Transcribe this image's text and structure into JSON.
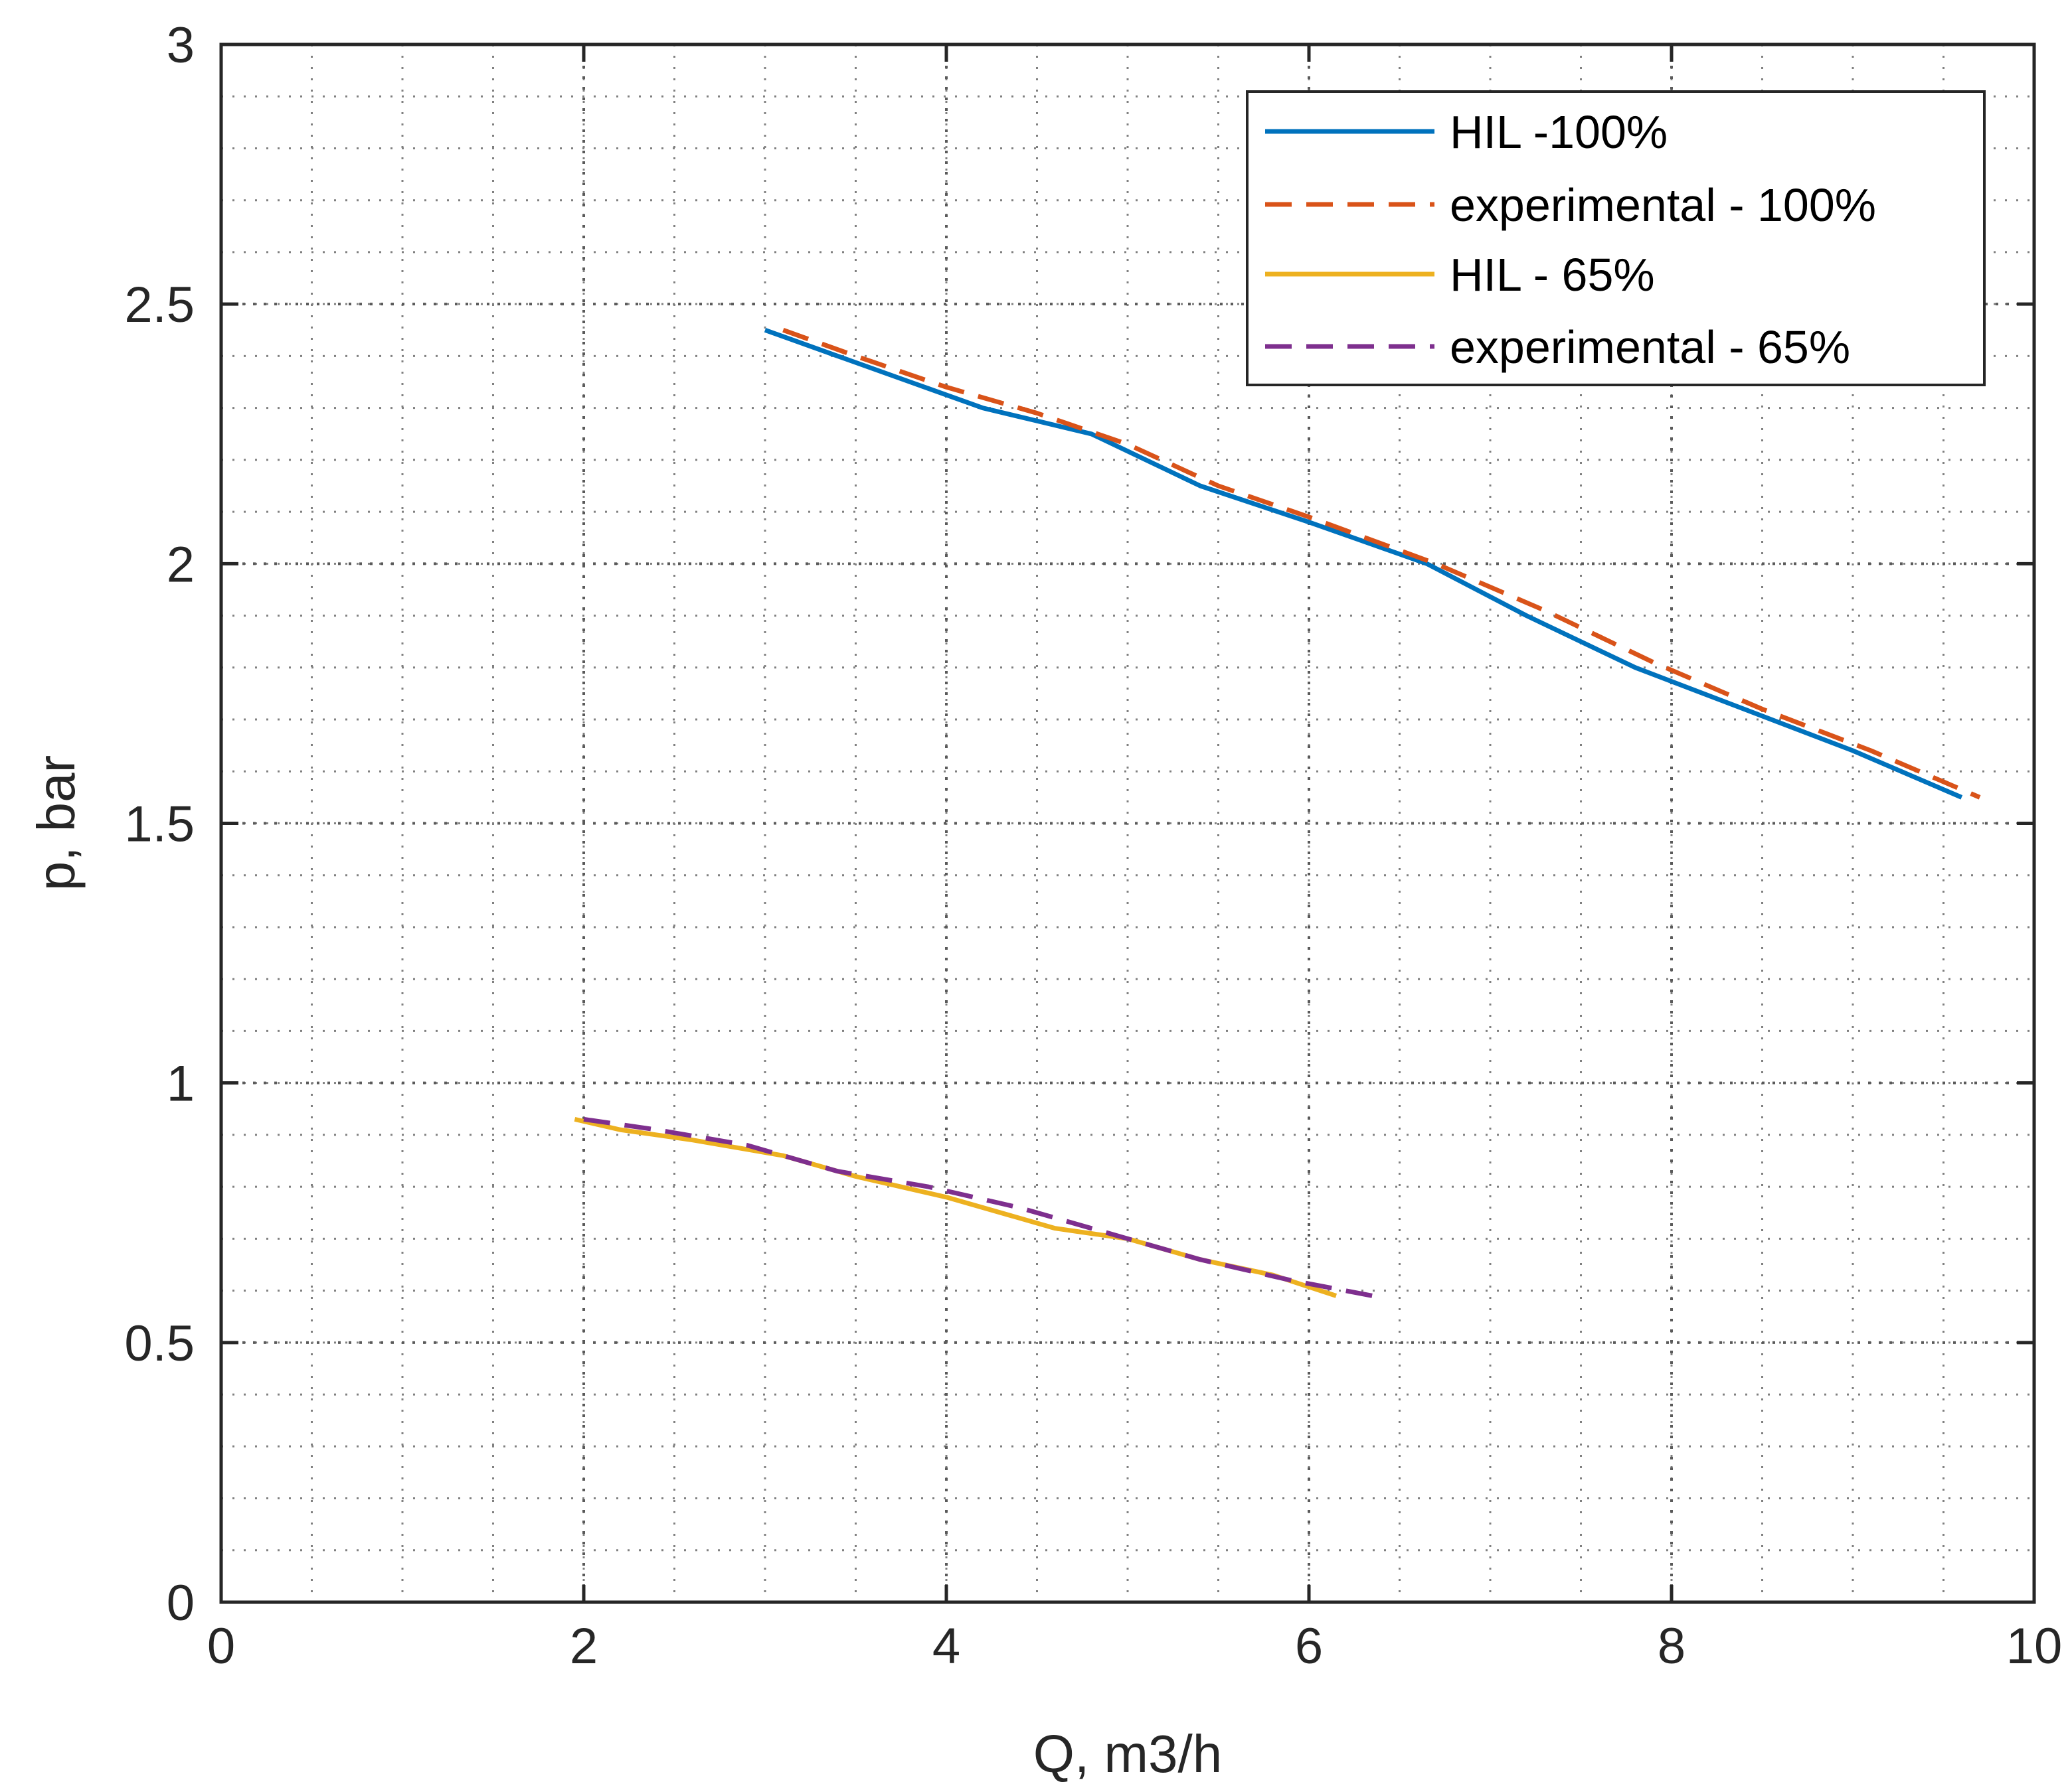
{
  "chart_data": {
    "type": "line",
    "title": "",
    "xlabel": "Q, m3/h",
    "ylabel": "p, bar",
    "xlim": [
      0,
      10
    ],
    "ylim": [
      0,
      3
    ],
    "xticks": [
      0,
      2,
      4,
      6,
      8,
      10
    ],
    "yticks": [
      0,
      0.5,
      1,
      1.5,
      2,
      2.5,
      3
    ],
    "xtick_labels": [
      "0",
      "2",
      "4",
      "6",
      "8",
      "10"
    ],
    "ytick_labels": [
      "0",
      "0.5",
      "1",
      "1.5",
      "2",
      "2.5",
      "3"
    ],
    "grid": "on, dotted, with minor gridlines",
    "legend_position": "top-right",
    "series": [
      {
        "name": "HIL -100%",
        "color": "#0072BD",
        "style": "solid",
        "x": [
          3.0,
          3.4,
          3.8,
          4.2,
          4.8,
          5.4,
          6.0,
          6.65,
          7.2,
          7.8,
          8.4,
          9.0,
          9.6
        ],
        "y": [
          2.45,
          2.4,
          2.35,
          2.3,
          2.25,
          2.15,
          2.08,
          2.0,
          1.9,
          1.8,
          1.72,
          1.64,
          1.55
        ]
      },
      {
        "name": "experimental - 100%",
        "color": "#D95319",
        "style": "dashed",
        "x": [
          3.1,
          3.5,
          4.0,
          4.5,
          5.0,
          5.5,
          6.0,
          6.7,
          7.3,
          7.9,
          8.5,
          9.1,
          9.7
        ],
        "y": [
          2.45,
          2.4,
          2.34,
          2.29,
          2.23,
          2.15,
          2.09,
          2.0,
          1.91,
          1.81,
          1.72,
          1.64,
          1.55
        ]
      },
      {
        "name": "HIL - 65%",
        "color": "#EDB120",
        "style": "solid",
        "x": [
          1.95,
          2.2,
          2.6,
          3.1,
          3.5,
          4.0,
          4.6,
          5.0,
          5.4,
          5.8,
          6.15
        ],
        "y": [
          0.93,
          0.91,
          0.89,
          0.86,
          0.82,
          0.78,
          0.72,
          0.7,
          0.66,
          0.63,
          0.59
        ]
      },
      {
        "name": "experimental - 65%",
        "color": "#7E2F8E",
        "style": "dashed",
        "x": [
          2.0,
          2.4,
          2.9,
          3.4,
          3.9,
          4.4,
          4.9,
          5.4,
          5.9,
          6.35
        ],
        "y": [
          0.93,
          0.91,
          0.88,
          0.83,
          0.8,
          0.76,
          0.71,
          0.66,
          0.62,
          0.59
        ]
      }
    ]
  }
}
